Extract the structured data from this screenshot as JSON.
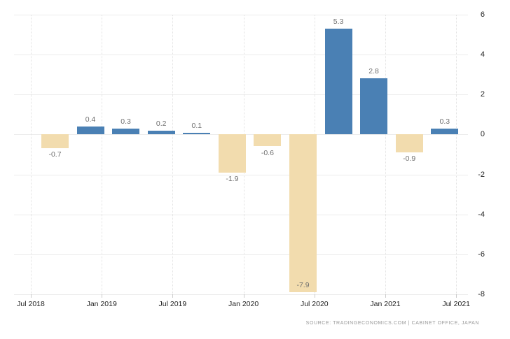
{
  "chart_data": {
    "type": "bar",
    "values": [
      -0.7,
      0.4,
      0.3,
      0.2,
      0.1,
      -1.9,
      -0.6,
      -7.9,
      5.3,
      2.8,
      -0.9,
      0.3
    ],
    "value_labels": [
      "-0.7",
      "0.4",
      "0.3",
      "0.2",
      "0.1",
      "-1.9",
      "-0.6",
      "-7.9",
      "5.3",
      "2.8",
      "-0.9",
      "0.3"
    ],
    "x_tick_labels": [
      "Jul 2018",
      "Jan 2019",
      "Jul 2019",
      "Jan 2020",
      "Jul 2020",
      "Jan 2021",
      "Jul 2021"
    ],
    "y_tick_labels": [
      "6",
      "4",
      "2",
      "0",
      "-2",
      "-4",
      "-6",
      "-8"
    ],
    "y_tick_values": [
      6,
      4,
      2,
      0,
      -2,
      -4,
      -6,
      -8
    ],
    "ylim": [
      -8,
      6
    ],
    "grid": true,
    "legend": "none",
    "colors": {
      "positive_bar": "#4a80b4",
      "negative_bar": "#f2dcae"
    },
    "source": "SOURCE: TRADINGECONOMICS.COM | CABINET OFFICE, JAPAN"
  }
}
